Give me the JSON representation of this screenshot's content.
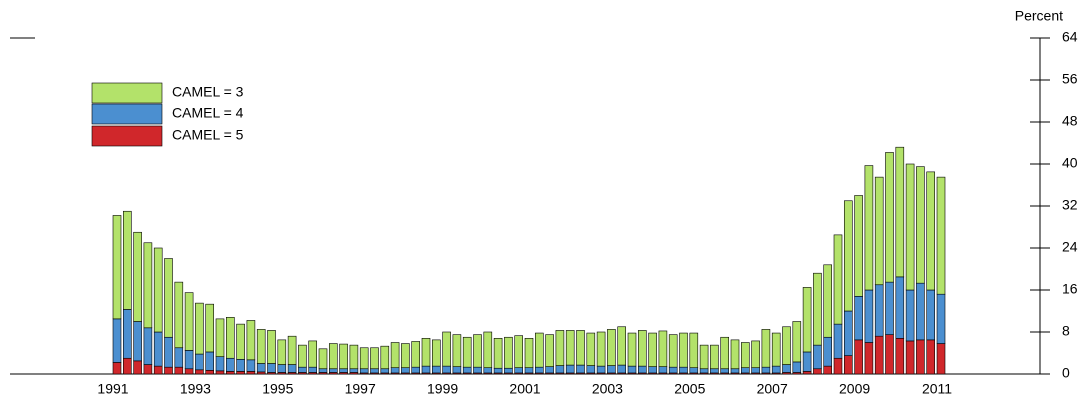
{
  "chart_data": {
    "type": "stacked_bar",
    "y_label": "Percent",
    "categories": [
      "1991",
      null,
      null,
      null,
      null,
      null,
      null,
      null,
      "1993",
      null,
      null,
      null,
      null,
      null,
      null,
      null,
      "1995",
      null,
      null,
      null,
      null,
      null,
      null,
      null,
      "1997",
      null,
      null,
      null,
      null,
      null,
      null,
      null,
      "1999",
      null,
      null,
      null,
      null,
      null,
      null,
      null,
      "2001",
      null,
      null,
      null,
      null,
      null,
      null,
      null,
      "2003",
      null,
      null,
      null,
      null,
      null,
      null,
      null,
      "2005",
      null,
      null,
      null,
      null,
      null,
      null,
      null,
      "2007",
      null,
      null,
      null,
      null,
      null,
      null,
      null,
      "2009",
      null,
      null,
      null,
      null,
      null,
      null,
      null,
      "2011"
    ],
    "series": [
      {
        "name": "CAMEL = 3",
        "color": "#b3e26a",
        "values": [
          19.7,
          18.7,
          17,
          16.2,
          16,
          15,
          12.5,
          11,
          9.7,
          9.1,
          7.2,
          7.8,
          6.7,
          7.5,
          6.5,
          6.3,
          4.7,
          5.4,
          4.2,
          5,
          3.8,
          4.8,
          4.7,
          4.5,
          4,
          4,
          4.3,
          4.8,
          4.6,
          4.9,
          5.3,
          5,
          6.5,
          6.1,
          5.7,
          6.2,
          6.8,
          5.7,
          5.9,
          6.1,
          5.6,
          6.5,
          6.1,
          6.7,
          6.6,
          6.6,
          6.2,
          6.5,
          6.9,
          7.3,
          6.3,
          6.8,
          6.4,
          6.8,
          6.2,
          6.5,
          6.6,
          4.5,
          4.5,
          6,
          5.5,
          4.8,
          5.1,
          7.2,
          6.3,
          7.2,
          7.7,
          12.3,
          13.7,
          13.8,
          17,
          21,
          19.2,
          23.7,
          20.5,
          24.7,
          24.7,
          24,
          22.2,
          22.5,
          22.3
        ]
      },
      {
        "name": "CAMEL = 4",
        "color": "#4b8fd0",
        "values": [
          8.3,
          9.3,
          7.5,
          7,
          6.5,
          5.7,
          3.7,
          3.5,
          3,
          3.5,
          2.7,
          2.5,
          2.3,
          2.2,
          1.6,
          1.7,
          1.5,
          1.5,
          1,
          1,
          0.7,
          0.7,
          0.7,
          0.7,
          0.8,
          0.8,
          0.8,
          1,
          1,
          1.1,
          1.3,
          1.3,
          1.3,
          1.2,
          1.1,
          1.1,
          1,
          0.9,
          0.9,
          1,
          1,
          1.1,
          1.2,
          1.4,
          1.5,
          1.5,
          1.4,
          1.3,
          1.4,
          1.5,
          1.3,
          1.3,
          1.2,
          1.2,
          1.1,
          1.1,
          1,
          0.8,
          0.8,
          0.8,
          0.8,
          1,
          1,
          1.1,
          1.3,
          1.5,
          2,
          3.7,
          4.5,
          5.5,
          6.5,
          8.5,
          8.3,
          10,
          9.8,
          10,
          11.7,
          9.7,
          10.8,
          9.5,
          9.4
        ]
      },
      {
        "name": "CAMEL = 5",
        "color": "#d0272b",
        "values": [
          2.2,
          3,
          2.5,
          1.8,
          1.5,
          1.3,
          1.3,
          1,
          0.8,
          0.7,
          0.6,
          0.5,
          0.5,
          0.5,
          0.4,
          0.3,
          0.3,
          0.3,
          0.3,
          0.3,
          0.3,
          0.3,
          0.3,
          0.3,
          0.2,
          0.2,
          0.2,
          0.2,
          0.2,
          0.2,
          0.2,
          0.2,
          0.2,
          0.2,
          0.2,
          0.2,
          0.2,
          0.2,
          0.2,
          0.2,
          0.2,
          0.2,
          0.2,
          0.2,
          0.2,
          0.2,
          0.2,
          0.2,
          0.2,
          0.2,
          0.2,
          0.2,
          0.2,
          0.2,
          0.2,
          0.2,
          0.2,
          0.2,
          0.2,
          0.2,
          0.2,
          0.2,
          0.2,
          0.2,
          0.2,
          0.3,
          0.3,
          0.5,
          1,
          1.5,
          3,
          3.5,
          6.5,
          6,
          7.2,
          7.5,
          6.8,
          6.3,
          6.5,
          6.5,
          5.8
        ]
      }
    ],
    "ylim": [
      0,
      64
    ],
    "yticks": [
      0,
      8,
      16,
      24,
      32,
      40,
      48,
      56,
      64
    ]
  }
}
